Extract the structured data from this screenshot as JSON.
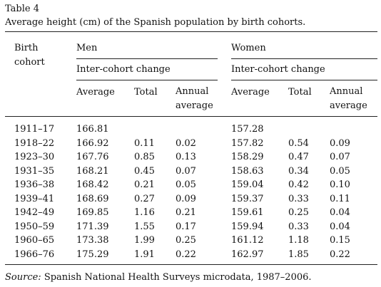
{
  "label": "Table 4",
  "caption": "Average height (cm) of the Spanish population by birth cohorts.",
  "header": {
    "cohort": "Birth cohort",
    "men": "Men",
    "women": "Women",
    "men_change": "Inter-cohort change",
    "women_change": "Inter-cohort change",
    "columns": [
      "Average",
      "Total",
      "Annual average",
      "Average",
      "Total",
      "Annual average"
    ]
  },
  "table": {
    "rows": [
      [
        "1911–17",
        "166.81",
        null,
        null,
        "157.28",
        null,
        null
      ],
      [
        "1918–22",
        "166.92",
        "0.11",
        "0.02",
        "157.82",
        "0.54",
        "0.09"
      ],
      [
        "1923–30",
        "167.76",
        "0.85",
        "0.13",
        "158.29",
        "0.47",
        "0.07"
      ],
      [
        "1931–35",
        "168.21",
        "0.45",
        "0.07",
        "158.63",
        "0.34",
        "0.05"
      ],
      [
        "1936–38",
        "168.42",
        "0.21",
        "0.05",
        "159.04",
        "0.42",
        "0.10"
      ],
      [
        "1939–41",
        "168.69",
        "0.27",
        "0.09",
        "159.37",
        "0.33",
        "0.11"
      ],
      [
        "1942–49",
        "169.85",
        "1.16",
        "0.21",
        "159.61",
        "0.25",
        "0.04"
      ],
      [
        "1950–59",
        "171.39",
        "1.55",
        "0.17",
        "159.94",
        "0.33",
        "0.04"
      ],
      [
        "1960–65",
        "173.38",
        "1.99",
        "0.25",
        "161.12",
        "1.18",
        "0.15"
      ],
      [
        "1966–76",
        "175.29",
        "1.91",
        "0.22",
        "162.97",
        "1.85",
        "0.22"
      ]
    ]
  },
  "source_label": "Source:",
  "source_text": "Spanish National Health Surveys microdata, 1987–2006."
}
